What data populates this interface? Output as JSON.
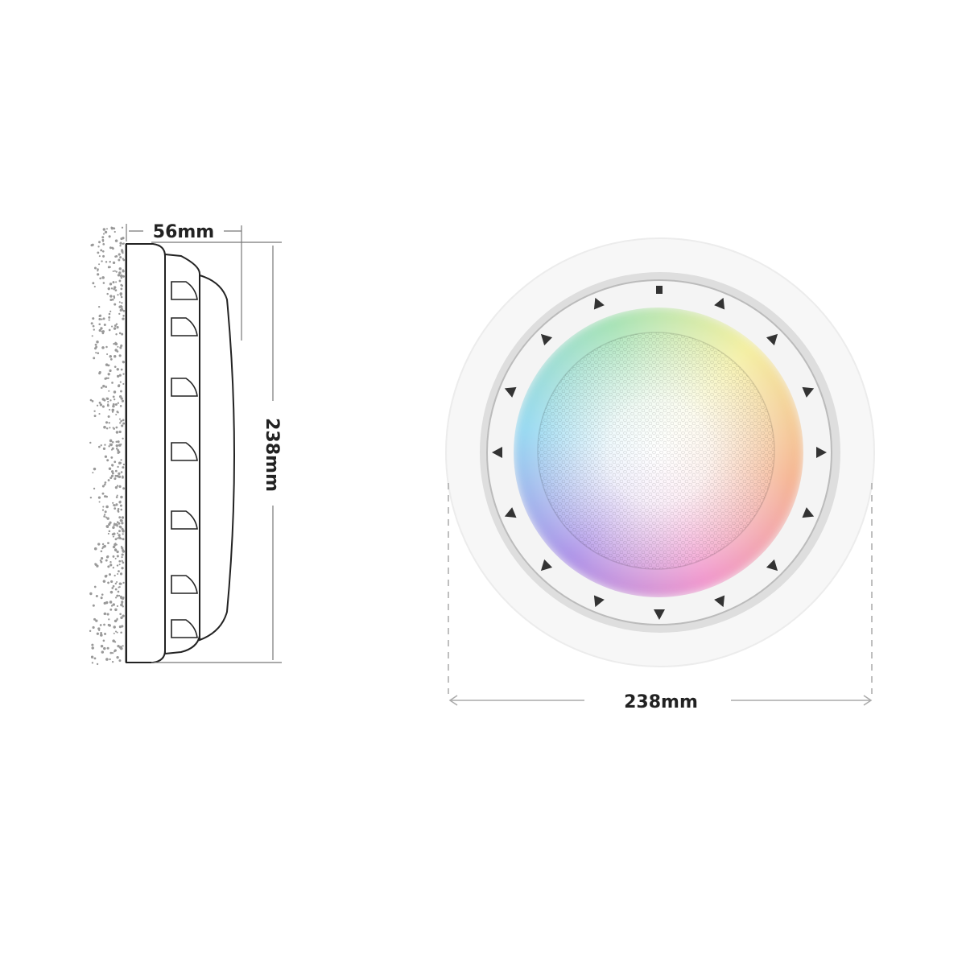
{
  "side_view": {
    "depth_label": "56mm",
    "height_label": "238mm"
  },
  "front_view": {
    "diameter_label": "238mm",
    "light_colors": [
      "#9fe0b0",
      "#f3ee9a",
      "#f4b08a",
      "#ef8fc8",
      "#a78be6",
      "#8fd6f0"
    ]
  },
  "colors": {
    "line": "#222222",
    "dimension_line": "#999999",
    "rim": "#e6e6e6",
    "marker": "#333333"
  }
}
